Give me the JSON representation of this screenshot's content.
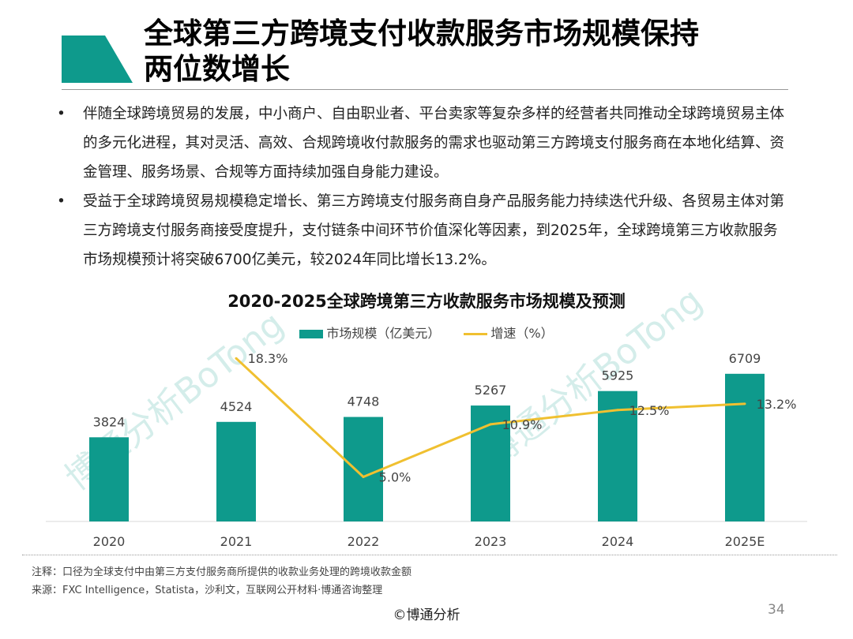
{
  "header": {
    "title_line1": "全球第三方跨境支付收款服务市场规模保持",
    "title_line2": "两位数增长",
    "accent_color": "#0e9a8c"
  },
  "bullets": [
    "伴随全球跨境贸易的发展，中小商户、自由职业者、平台卖家等复杂多样的经营者共同推动全球跨境贸易主体的多元化进程，其对灵活、高效、合规跨境收付款服务的需求也驱动第三方跨境支付服务商在本地化结算、资金管理、服务场景、合规等方面持续加强自身能力建设。",
    "受益于全球跨境贸易规模稳定增长、第三方跨境支付服务商自身产品服务能力持续迭代升级、各贸易主体对第三方跨境支付服务商接受度提升，支付链条中间环节价值深化等因素，到2025年，全球跨境第三方收款服务市场规模预计将突破6700亿美元，较2024年同比增长13.2%。"
  ],
  "bullet_symbol": "•",
  "chart_data": {
    "type": "bar+line",
    "title": "2020-2025全球跨境第三方收款服务市场规模及预测",
    "categories": [
      "2020",
      "2021",
      "2022",
      "2023",
      "2024",
      "2025E"
    ],
    "series": [
      {
        "name": "市场规模（亿美元）",
        "type": "bar",
        "color": "#0e9a8c",
        "values": [
          3824,
          4524,
          4748,
          5267,
          5925,
          6709
        ],
        "labels": [
          "3824",
          "4524",
          "4748",
          "5267",
          "5925",
          "6709"
        ]
      },
      {
        "name": "增速（%）",
        "type": "line",
        "color": "#f0c030",
        "values": [
          null,
          18.3,
          5.0,
          10.9,
          12.5,
          13.2
        ],
        "labels": [
          "",
          "18.3%",
          "5.0%",
          "10.9%",
          "12.5%",
          "13.2%"
        ]
      }
    ],
    "legend": "top-center",
    "grid": false
  },
  "watermark": "博通分析BoTong",
  "notes": {
    "note": "注释：口径为全球支付中由第三方支付服务商所提供的收款业务处理的跨境收款金额",
    "source": "来源：FXC Intelligence，Statista，沙利文，互联网公开材料·博通咨询整理"
  },
  "footer": {
    "copyright": "©博通分析",
    "page_number": "34"
  }
}
